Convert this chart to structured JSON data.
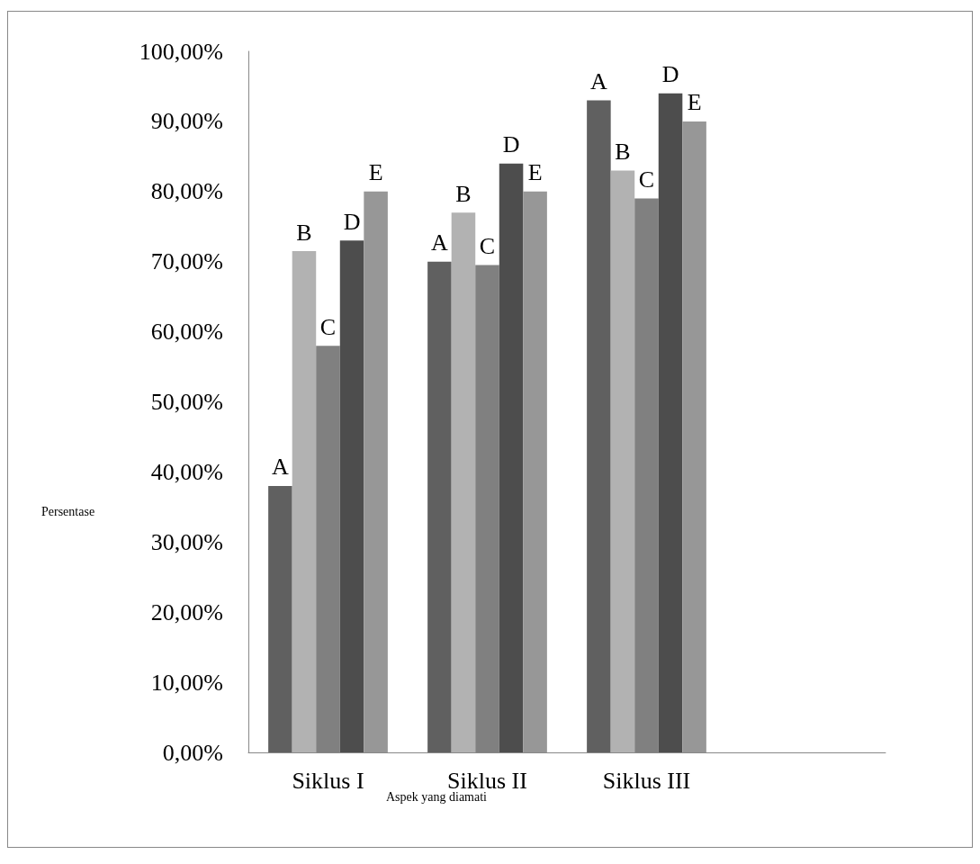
{
  "chart_data": {
    "type": "bar",
    "xlabel": "Aspek yang diamati",
    "ylabel": "Persentase",
    "categories": [
      "Siklus I",
      "Siklus II",
      "Siklus III",
      null
    ],
    "series": [
      {
        "name": "A",
        "color": "#606060",
        "values": [
          38,
          70,
          93,
          null
        ]
      },
      {
        "name": "B",
        "color": "#b2b2b2",
        "values": [
          71.5,
          77,
          83,
          null
        ]
      },
      {
        "name": "C",
        "color": "#808080",
        "values": [
          58,
          69.5,
          79,
          null
        ]
      },
      {
        "name": "D",
        "color": "#4d4d4d",
        "values": [
          73,
          84,
          94,
          null
        ]
      },
      {
        "name": "E",
        "color": "#979797",
        "values": [
          80,
          80,
          90,
          null
        ]
      }
    ],
    "ylim": [
      0,
      100
    ],
    "yticks": [
      {
        "value": 0,
        "label": "0,00%"
      },
      {
        "value": 10,
        "label": "10,00%"
      },
      {
        "value": 20,
        "label": "20,00%"
      },
      {
        "value": 30,
        "label": "30,00%"
      },
      {
        "value": 40,
        "label": "40,00%"
      },
      {
        "value": 50,
        "label": "50,00%"
      },
      {
        "value": 60,
        "label": "60,00%"
      },
      {
        "value": 70,
        "label": "70,00%"
      },
      {
        "value": 80,
        "label": "80,00%"
      },
      {
        "value": 90,
        "label": "90,00%"
      },
      {
        "value": 100,
        "label": "100,00%"
      }
    ],
    "grid": false,
    "legend": false
  }
}
